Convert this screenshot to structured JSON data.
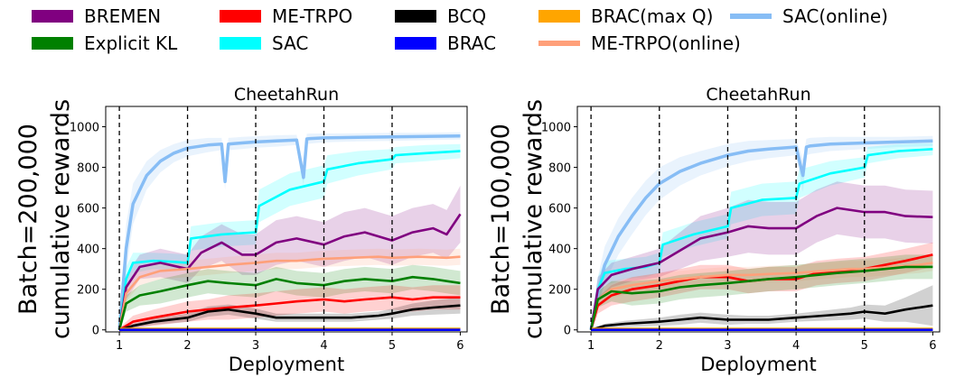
{
  "legend": [
    {
      "name": "BREMEN",
      "color": "#800080",
      "style": "hatched-patch"
    },
    {
      "name": "Explicit KL",
      "color": "#008000",
      "style": "hatched-patch"
    },
    {
      "name": "ME-TRPO",
      "color": "#ff0000",
      "style": "hatched-patch"
    },
    {
      "name": "SAC",
      "color": "#00ffff",
      "style": "hatched-patch"
    },
    {
      "name": "BCQ",
      "color": "#000000",
      "style": "hatched-patch"
    },
    {
      "name": "BRAC",
      "color": "#0000ff",
      "style": "hatched-patch"
    },
    {
      "name": "BRAC(max Q)",
      "color": "#ffa500",
      "style": "hatched-patch"
    },
    {
      "name": "ME-TRPO(online)",
      "color": "#ffa07a",
      "style": "line"
    },
    {
      "name": "SAC(online)",
      "color": "#87bdf5",
      "style": "line"
    }
  ],
  "chart_data": [
    {
      "type": "line",
      "title": "CheetahRun",
      "xlabel": "Deployment",
      "ylabel": "Batch=200,000\ncumulative rewards",
      "ylabel_lines": [
        "Batch=200,000",
        "cumulative rewards"
      ],
      "xlim": [
        0.8,
        6.1
      ],
      "ylim": [
        -10,
        1100
      ],
      "xticks": [
        1,
        2,
        3,
        4,
        5,
        6
      ],
      "yticks": [
        0,
        200,
        400,
        600,
        800,
        1000
      ],
      "vlines": [
        1,
        2,
        3,
        4,
        5
      ],
      "series": [
        {
          "name": "SAC(online)",
          "color": "#87bdf5",
          "x": [
            1,
            1.1,
            1.2,
            1.4,
            1.6,
            1.8,
            2.0,
            2.3,
            2.5,
            2.55,
            2.6,
            2.8,
            3.0,
            3.3,
            3.6,
            3.7,
            3.75,
            3.8,
            4.0,
            4.5,
            5.0,
            5.5,
            6.0
          ],
          "y": [
            0,
            400,
            620,
            760,
            830,
            870,
            895,
            910,
            915,
            730,
            915,
            920,
            925,
            930,
            935,
            750,
            940,
            942,
            945,
            948,
            950,
            952,
            955
          ],
          "band": [
            60,
            120,
            100,
            70,
            55,
            45,
            40,
            35,
            30,
            40,
            30,
            30,
            28,
            28,
            25,
            40,
            25,
            25,
            22,
            20,
            20,
            18,
            18
          ]
        },
        {
          "name": "SAC",
          "color": "#00ffff",
          "x": [
            1,
            1.1,
            1.2,
            1.5,
            1.8,
            2.0,
            2.05,
            2.5,
            3.0,
            3.05,
            3.5,
            4.0,
            4.05,
            4.5,
            5.0,
            5.05,
            5.5,
            6.0
          ],
          "y": [
            0,
            250,
            330,
            340,
            335,
            330,
            450,
            470,
            480,
            610,
            690,
            730,
            790,
            820,
            840,
            860,
            870,
            880
          ],
          "band": [
            20,
            60,
            50,
            40,
            40,
            40,
            60,
            60,
            60,
            80,
            80,
            80,
            70,
            60,
            50,
            40,
            40,
            35
          ]
        },
        {
          "name": "BREMEN",
          "color": "#800080",
          "x": [
            1,
            1.1,
            1.3,
            1.6,
            2.0,
            2.2,
            2.5,
            2.8,
            3.0,
            3.3,
            3.6,
            4.0,
            4.3,
            4.6,
            5.0,
            5.3,
            5.6,
            5.8,
            6.0
          ],
          "y": [
            0,
            210,
            310,
            330,
            300,
            380,
            430,
            370,
            370,
            430,
            450,
            420,
            460,
            480,
            440,
            480,
            500,
            470,
            570
          ],
          "band": [
            20,
            60,
            60,
            70,
            70,
            80,
            90,
            100,
            100,
            110,
            110,
            110,
            120,
            120,
            120,
            120,
            120,
            120,
            140
          ]
        },
        {
          "name": "ME-TRPO(online)",
          "color": "#ffa07a",
          "x": [
            1,
            1.1,
            1.3,
            1.6,
            2.0,
            2.3,
            2.6,
            3.0,
            3.3,
            3.6,
            4.0,
            4.4,
            4.8,
            5.0,
            5.4,
            5.8,
            6.0
          ],
          "y": [
            0,
            180,
            260,
            290,
            300,
            310,
            320,
            330,
            340,
            340,
            350,
            355,
            360,
            355,
            360,
            355,
            360
          ],
          "band": [
            20,
            40,
            40,
            40,
            40,
            40,
            40,
            40,
            40,
            40,
            40,
            40,
            40,
            40,
            40,
            40,
            40
          ]
        },
        {
          "name": "Explicit KL",
          "color": "#008000",
          "x": [
            1,
            1.1,
            1.3,
            1.6,
            2.0,
            2.3,
            2.6,
            3.0,
            3.3,
            3.6,
            4.0,
            4.3,
            4.6,
            5.0,
            5.3,
            5.6,
            5.8,
            6.0
          ],
          "y": [
            0,
            130,
            170,
            190,
            220,
            240,
            230,
            220,
            250,
            230,
            220,
            240,
            250,
            240,
            260,
            250,
            240,
            230
          ],
          "band": [
            15,
            40,
            50,
            60,
            60,
            60,
            60,
            60,
            60,
            60,
            60,
            60,
            60,
            60,
            60,
            60,
            60,
            60
          ]
        },
        {
          "name": "ME-TRPO",
          "color": "#ff0000",
          "x": [
            1,
            1.2,
            1.5,
            2.0,
            2.3,
            2.6,
            3.0,
            3.3,
            3.6,
            4.0,
            4.3,
            4.6,
            5.0,
            5.3,
            5.6,
            6.0
          ],
          "y": [
            0,
            40,
            60,
            90,
            100,
            110,
            120,
            130,
            140,
            150,
            140,
            150,
            160,
            150,
            160,
            160
          ],
          "band": [
            10,
            30,
            40,
            50,
            50,
            60,
            60,
            60,
            60,
            60,
            60,
            60,
            60,
            60,
            60,
            60
          ]
        },
        {
          "name": "BCQ",
          "color": "#000000",
          "x": [
            1,
            1.2,
            1.5,
            2.0,
            2.3,
            2.6,
            3.0,
            3.3,
            3.6,
            4.0,
            4.4,
            4.8,
            5.0,
            5.3,
            5.6,
            6.0
          ],
          "y": [
            0,
            20,
            40,
            60,
            90,
            100,
            80,
            60,
            60,
            60,
            60,
            70,
            80,
            100,
            110,
            120
          ],
          "band": [
            5,
            10,
            15,
            20,
            25,
            25,
            25,
            20,
            20,
            20,
            20,
            20,
            25,
            30,
            35,
            40
          ]
        },
        {
          "name": "BRAC(max Q)",
          "color": "#ffa500",
          "x": [
            1,
            2,
            3,
            4,
            5,
            6
          ],
          "y": [
            5,
            5,
            5,
            5,
            5,
            5
          ],
          "band": [
            3,
            3,
            3,
            3,
            3,
            3
          ]
        },
        {
          "name": "BRAC",
          "color": "#0000ff",
          "x": [
            1,
            2,
            3,
            4,
            5,
            6
          ],
          "y": [
            0,
            0,
            0,
            0,
            0,
            0
          ],
          "band": [
            2,
            2,
            2,
            2,
            2,
            2
          ]
        }
      ]
    },
    {
      "type": "line",
      "title": "CheetahRun",
      "xlabel": "Deployment",
      "ylabel": "Batch=100,000\ncumulative rewards",
      "ylabel_lines": [
        "Batch=100,000",
        "cumulative rewards"
      ],
      "xlim": [
        0.8,
        6.1
      ],
      "ylim": [
        -10,
        1100
      ],
      "xticks": [
        1,
        2,
        3,
        4,
        5,
        6
      ],
      "yticks": [
        0,
        200,
        400,
        600,
        800,
        1000
      ],
      "vlines": [
        1,
        2,
        3,
        4,
        5
      ],
      "series": [
        {
          "name": "SAC(online)",
          "color": "#87bdf5",
          "x": [
            1,
            1.1,
            1.2,
            1.4,
            1.6,
            1.8,
            2.0,
            2.3,
            2.6,
            3.0,
            3.3,
            3.6,
            4.0,
            4.1,
            4.15,
            4.2,
            4.5,
            5.0,
            5.5,
            6.0
          ],
          "y": [
            0,
            180,
            320,
            460,
            560,
            650,
            720,
            780,
            820,
            860,
            880,
            890,
            900,
            760,
            900,
            905,
            915,
            920,
            925,
            930
          ],
          "band": [
            40,
            80,
            90,
            90,
            90,
            85,
            80,
            70,
            60,
            55,
            50,
            45,
            40,
            80,
            40,
            40,
            35,
            30,
            25,
            25
          ]
        },
        {
          "name": "SAC",
          "color": "#00ffff",
          "x": [
            1,
            1.1,
            1.2,
            1.5,
            1.8,
            2.0,
            2.05,
            2.5,
            3.0,
            3.05,
            3.5,
            4.0,
            4.05,
            4.5,
            5.0,
            5.05,
            5.5,
            6.0
          ],
          "y": [
            0,
            200,
            280,
            300,
            310,
            330,
            420,
            470,
            510,
            600,
            640,
            650,
            720,
            770,
            800,
            860,
            880,
            890
          ],
          "band": [
            20,
            60,
            60,
            50,
            50,
            50,
            60,
            60,
            60,
            80,
            80,
            80,
            70,
            60,
            50,
            40,
            35,
            30
          ]
        },
        {
          "name": "BREMEN",
          "color": "#800080",
          "x": [
            1,
            1.1,
            1.3,
            1.6,
            2.0,
            2.3,
            2.6,
            3.0,
            3.3,
            3.6,
            4.0,
            4.3,
            4.6,
            5.0,
            5.3,
            5.6,
            6.0
          ],
          "y": [
            0,
            200,
            270,
            300,
            330,
            390,
            450,
            480,
            510,
            500,
            500,
            560,
            600,
            580,
            580,
            560,
            555
          ],
          "band": [
            20,
            60,
            60,
            60,
            70,
            90,
            110,
            120,
            130,
            130,
            130,
            130,
            130,
            130,
            130,
            130,
            130
          ]
        },
        {
          "name": "ME-TRPO",
          "color": "#ff0000",
          "x": [
            1,
            1.1,
            1.3,
            1.6,
            2.0,
            2.3,
            2.6,
            3.0,
            3.3,
            3.6,
            4.0,
            4.3,
            4.6,
            5.0,
            5.3,
            5.6,
            6.0
          ],
          "y": [
            0,
            120,
            170,
            200,
            220,
            240,
            260,
            260,
            240,
            250,
            250,
            280,
            290,
            300,
            320,
            340,
            370
          ],
          "band": [
            15,
            40,
            50,
            60,
            60,
            60,
            60,
            60,
            60,
            60,
            60,
            60,
            60,
            60,
            60,
            60,
            60
          ]
        },
        {
          "name": "ME-TRPO(online)",
          "color": "#ffa07a",
          "x": [
            1,
            1.1,
            1.3,
            1.6,
            2.0,
            2.3,
            2.6,
            3.0,
            3.3,
            3.6,
            4.0,
            4.4,
            4.8,
            5.0,
            5.4,
            5.8,
            6.0
          ],
          "y": [
            0,
            150,
            200,
            220,
            240,
            250,
            260,
            270,
            270,
            275,
            280,
            290,
            300,
            300,
            310,
            320,
            330
          ],
          "band": [
            20,
            40,
            40,
            40,
            40,
            40,
            40,
            40,
            40,
            40,
            40,
            40,
            40,
            40,
            40,
            40,
            40
          ]
        },
        {
          "name": "Explicit KL",
          "color": "#008000",
          "x": [
            1,
            1.1,
            1.3,
            1.6,
            2.0,
            2.3,
            2.6,
            3.0,
            3.3,
            3.6,
            4.0,
            4.3,
            4.6,
            5.0,
            5.3,
            5.6,
            6.0
          ],
          "y": [
            0,
            150,
            190,
            180,
            190,
            210,
            220,
            230,
            240,
            250,
            260,
            270,
            280,
            290,
            300,
            310,
            310
          ],
          "band": [
            15,
            40,
            50,
            60,
            60,
            60,
            60,
            60,
            60,
            60,
            60,
            60,
            60,
            60,
            60,
            60,
            60
          ]
        },
        {
          "name": "BCQ",
          "color": "#000000",
          "x": [
            1,
            1.2,
            1.5,
            2.0,
            2.3,
            2.6,
            3.0,
            3.3,
            3.6,
            4.0,
            4.4,
            4.8,
            5.0,
            5.3,
            5.6,
            6.0
          ],
          "y": [
            0,
            20,
            30,
            40,
            50,
            60,
            50,
            50,
            50,
            60,
            70,
            80,
            90,
            80,
            100,
            120
          ],
          "band": [
            5,
            10,
            15,
            20,
            25,
            25,
            25,
            20,
            20,
            20,
            25,
            30,
            35,
            40,
            60,
            100
          ]
        },
        {
          "name": "BRAC(max Q)",
          "color": "#ffa500",
          "x": [
            1,
            2,
            3,
            4,
            5,
            6
          ],
          "y": [
            5,
            5,
            5,
            5,
            5,
            5
          ],
          "band": [
            3,
            3,
            3,
            3,
            3,
            3
          ]
        },
        {
          "name": "BRAC",
          "color": "#0000ff",
          "x": [
            1,
            2,
            3,
            4,
            5,
            6
          ],
          "y": [
            0,
            0,
            0,
            0,
            0,
            0
          ],
          "band": [
            2,
            2,
            2,
            2,
            2,
            2
          ]
        }
      ]
    }
  ]
}
